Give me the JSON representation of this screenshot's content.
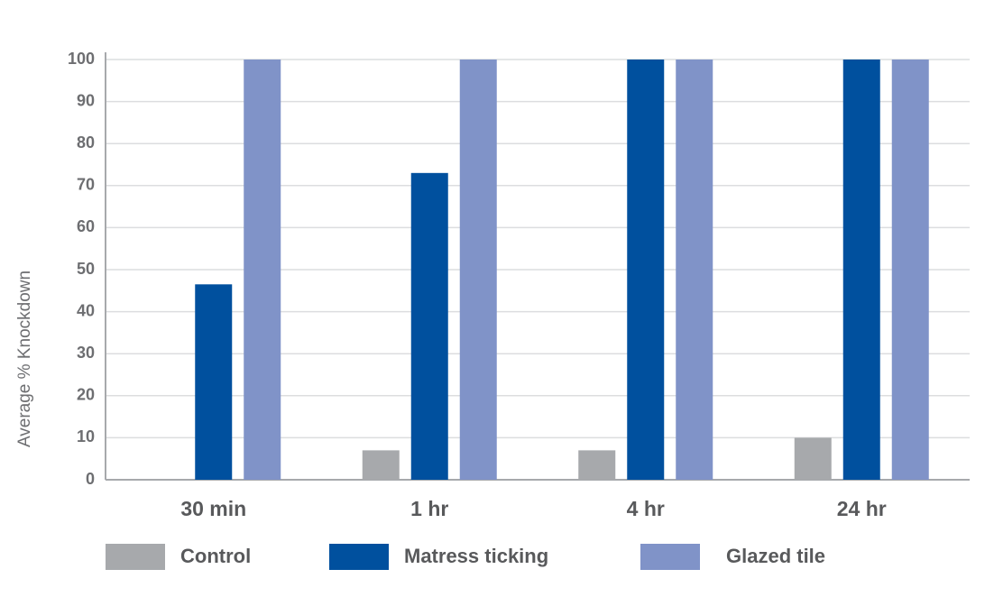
{
  "chart_data": {
    "type": "bar",
    "y_label": "Average % Knockdown",
    "categories": [
      "30 min",
      "1 hr",
      "4 hr",
      "24 hr"
    ],
    "series": [
      {
        "name": "Control",
        "color": "#a7a9ac",
        "values": [
          0,
          7,
          7,
          10
        ]
      },
      {
        "name": "Matress ticking",
        "color": "#00509e",
        "values": [
          46.5,
          73,
          100,
          100
        ]
      },
      {
        "name": "Glazed tile",
        "color": "#8093c8",
        "values": [
          100,
          100,
          100,
          100
        ]
      }
    ],
    "ylim": [
      0,
      100
    ],
    "yticks": [
      0,
      10,
      20,
      30,
      40,
      50,
      60,
      70,
      80,
      90,
      100
    ],
    "grid": true,
    "legend": "bottom"
  }
}
